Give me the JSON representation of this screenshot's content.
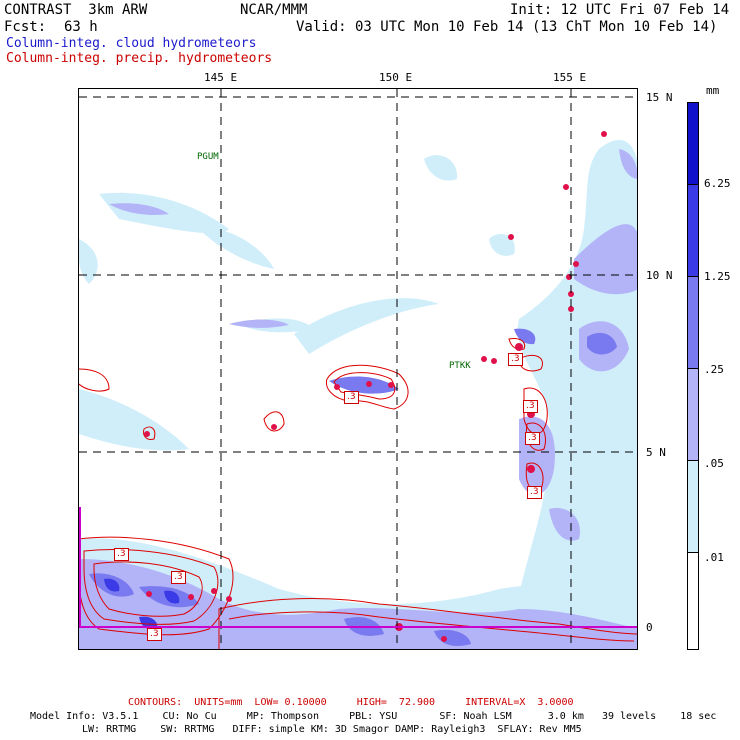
{
  "header": {
    "model": "CONTRAST  3km ARW",
    "org": "NCAR/MMM",
    "init": "Init: 12 UTC Fri 07 Feb 14",
    "fcst_label": "Fcst:",
    "fcst_value": "63 h",
    "valid": "Valid: 03 UTC Mon 10 Feb 14 (13 ChT Mon 10 Feb 14)",
    "field_cloud": "Column-integ. cloud hydrometeors",
    "field_precip": "Column-integ. precip. hydrometeors"
  },
  "axes": {
    "lon_labels": [
      "145 E",
      "150 E",
      "155 E"
    ],
    "lat_labels": [
      "15 N",
      "10 N",
      "5 N",
      "0"
    ]
  },
  "stations": [
    "PGUM",
    "PTKK"
  ],
  "contour_labels": [
    ".3",
    ".3",
    ".3",
    ".3",
    ".3",
    ".3",
    ".3",
    ".3"
  ],
  "colorbar": {
    "unit": "mm",
    "levels": [
      "6.25",
      "1.25",
      ".25",
      ".05",
      ".01"
    ],
    "colors": [
      "#1111cc",
      "#3a3ae6",
      "#7a7af0",
      "#b3b3f7",
      "#cfeefa",
      "#ffffff"
    ]
  },
  "footer": {
    "contours": "CONTOURS:  UNITS=mm  LOW= 0.10000     HIGH=  72.900     INTERVAL=X  3.0000",
    "model_info_1": "Model Info: V3.5.1    CU: No Cu     MP: Thompson     PBL: YSU       SF: Noah LSM      3.0 km   39 levels    18 sec",
    "model_info_2": "LW: RRTMG    SW: RRTMG   DIFF: simple KM: 3D Smagor DAMP: Rayleigh3  SFLAY: Rev MM5"
  },
  "colors": {
    "cloud_light": "#cfeefa",
    "cloud_mid": "#b3b3f7",
    "cloud_dark": "#7a7af0",
    "precip_contour": "#dd0000",
    "equator_line": "#cc00cc"
  }
}
